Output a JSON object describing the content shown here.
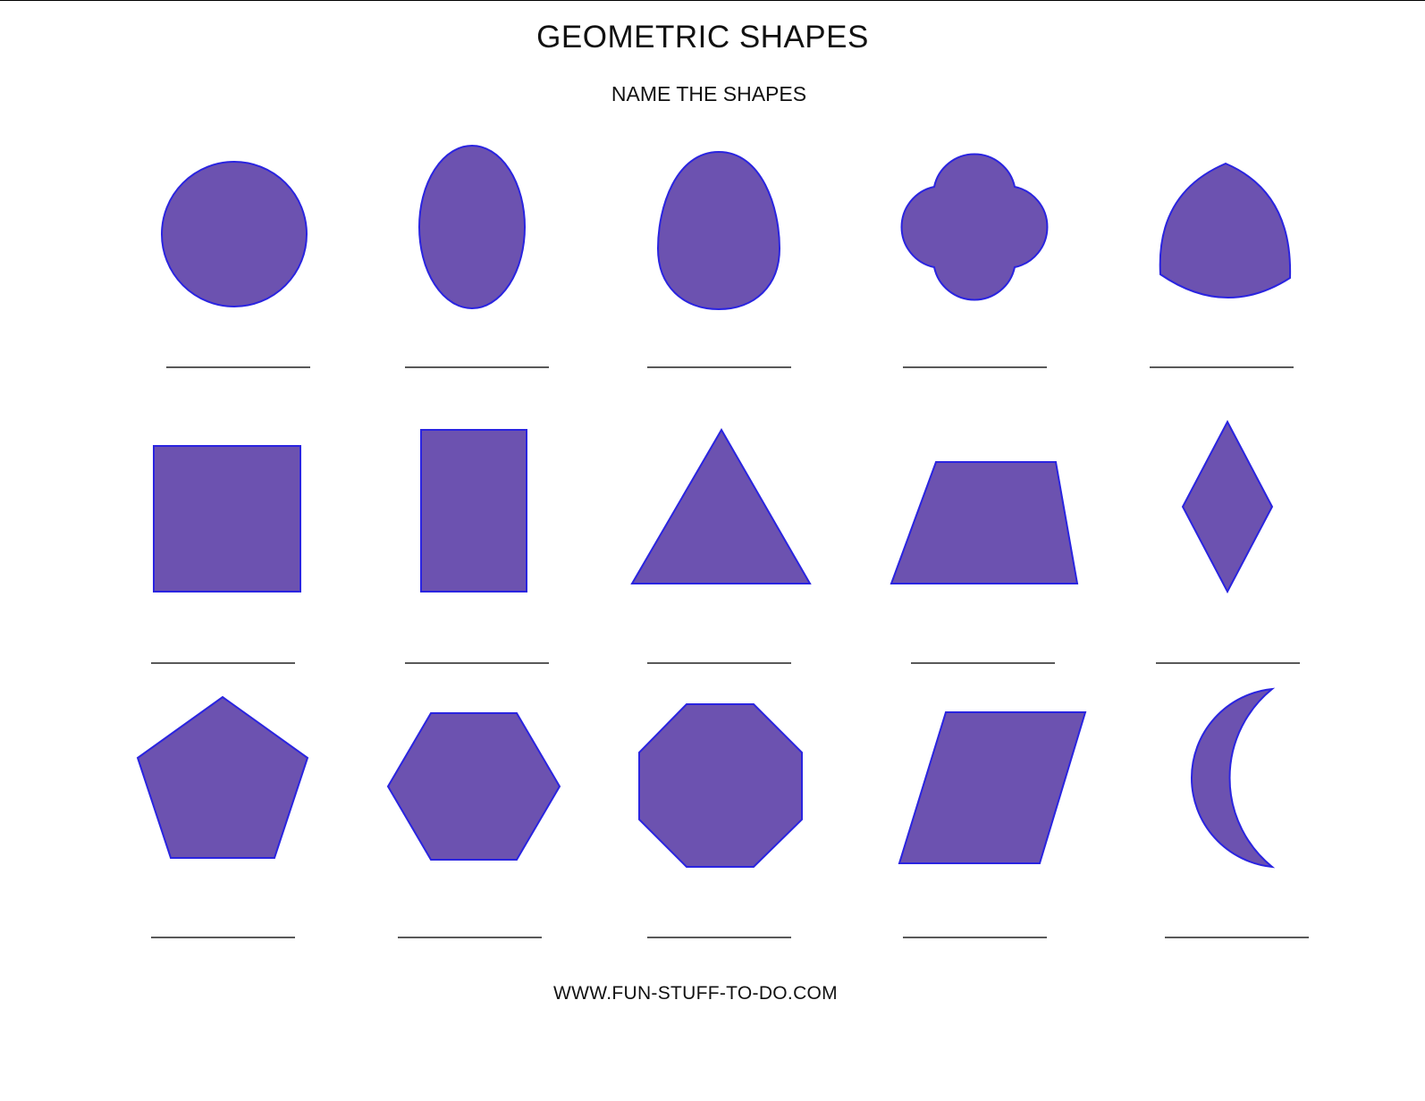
{
  "title": "GEOMETRIC SHAPES",
  "subtitle": "NAME THE SHAPES",
  "footer": "WWW.FUN-STUFF-TO-DO.COM",
  "colors": {
    "shape_fill": "#6c52b0",
    "shape_outline": "#2a24e0",
    "answer_line": "#222222"
  },
  "shapes": [
    "circle-icon",
    "oval-icon",
    "egg-icon",
    "quatrefoil-icon",
    "rounded-triangle-icon",
    "square-icon",
    "rectangle-icon",
    "triangle-icon",
    "trapezoid-icon",
    "rhombus-icon",
    "pentagon-icon",
    "hexagon-icon",
    "octagon-icon",
    "parallelogram-icon",
    "crescent-icon"
  ]
}
